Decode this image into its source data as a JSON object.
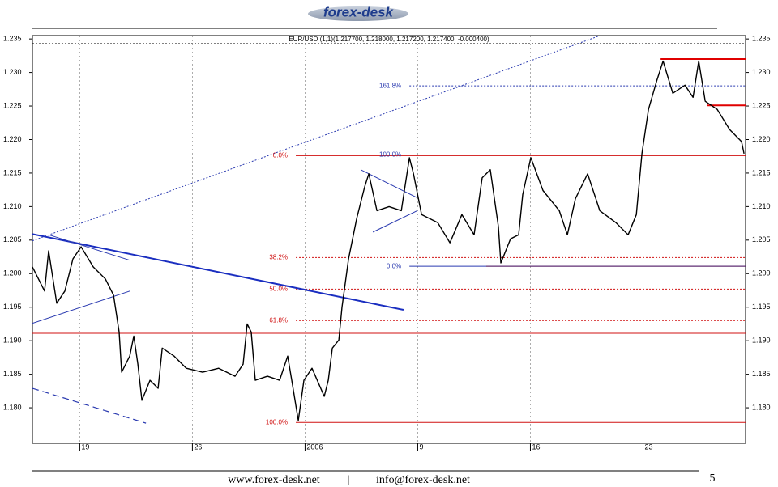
{
  "header": {
    "logo": "forex-desk"
  },
  "chart_data": {
    "type": "line",
    "title": "EUR/USD (1,1)(1.217700, 1.218000, 1.217200, 1.217400, -0.000400)",
    "x": [
      -0.1,
      0.44,
      0.62,
      0.98,
      1.34,
      1.7,
      2.06,
      2.6,
      3.14,
      3.5,
      3.75,
      3.86,
      4.22,
      4.4,
      4.58,
      4.76,
      5.12,
      5.48,
      5.66,
      6.19,
      6.73,
      7.45,
      8.17,
      8.89,
      9.25,
      9.43,
      9.61,
      9.79,
      10.33,
      10.87,
      11.23,
      11.41,
      11.7,
      11.95,
      12.31,
      12.85,
      13.03,
      13.21,
      13.5,
      13.64,
      13.93,
      14.29,
      14.65,
      14.83,
      15.19,
      15.73,
      16.27,
      16.63,
      16.81,
      17.17,
      17.89,
      18.43,
      18.96,
      19.5,
      19.86,
      20.22,
      20.58,
      20.69,
      21.12,
      21.48,
      21.66,
      22.02,
      22.56,
      23.28,
      23.64,
      24.0,
      24.54,
      25.08,
      25.8,
      26.34,
      26.7,
      26.95,
      27.24,
      27.6,
      27.89,
      28.32,
      28.86,
      29.22,
      29.47,
      29.76,
      30.29,
      30.84,
      31.37,
      31.48
    ],
    "values": [
      1.201,
      1.1974,
      1.2034,
      1.1956,
      1.1974,
      1.2022,
      1.204,
      1.201,
      1.1992,
      1.1968,
      1.1913,
      1.1853,
      1.1877,
      1.1907,
      1.1865,
      1.1811,
      1.1841,
      1.1829,
      1.1889,
      1.1877,
      1.1859,
      1.1853,
      1.1859,
      1.1847,
      1.1865,
      1.1925,
      1.1913,
      1.1841,
      1.1847,
      1.1841,
      1.1877,
      1.1841,
      1.1781,
      1.1841,
      1.1859,
      1.1817,
      1.1841,
      1.1889,
      1.1901,
      1.195,
      1.2022,
      1.2082,
      1.213,
      1.2149,
      1.2094,
      1.21,
      1.2094,
      1.2173,
      1.2149,
      1.2088,
      1.2076,
      1.2046,
      1.2088,
      1.2058,
      1.2143,
      1.2155,
      1.207,
      1.2016,
      1.2052,
      1.2058,
      1.2118,
      1.2173,
      1.2124,
      1.2094,
      1.2058,
      1.2112,
      1.2149,
      1.2094,
      1.2076,
      1.2058,
      1.2088,
      1.2179,
      1.2245,
      1.2287,
      1.2317,
      1.2269,
      1.2281,
      1.2263,
      1.2317,
      1.2257,
      1.2245,
      1.2215,
      1.2197,
      1.2179
    ],
    "color": "#000000",
    "xlim": [
      -0.1,
      31.55
    ],
    "ylim": [
      1.1747,
      1.2355
    ],
    "xticks": [
      {
        "value": 2,
        "label": "19"
      },
      {
        "value": 7,
        "label": "26"
      },
      {
        "value": 12,
        "label": "2006"
      },
      {
        "value": 17,
        "label": "9"
      },
      {
        "value": 22,
        "label": "16"
      },
      {
        "value": 27,
        "label": "23"
      }
    ],
    "yticks": [
      {
        "value": 1.18,
        "label": "1.180"
      },
      1.185,
      {
        "value": 1.19,
        "label": "1.190"
      },
      1.195,
      {
        "value": 1.2,
        "label": "1.200"
      },
      1.205,
      {
        "value": 1.21,
        "label": "1.210"
      },
      1.215,
      {
        "value": 1.22,
        "label": "1.220"
      },
      1.225,
      {
        "value": 1.23,
        "label": "1.230"
      },
      1.235
    ],
    "grid": "x",
    "levels": [
      {
        "value": 1.2343,
        "x": [
          -0.1,
          31.55
        ],
        "color": "#000000",
        "style": "dotted"
      },
      {
        "value": 1.1911,
        "x": [
          -0.1,
          31.55
        ],
        "color": "#d01010",
        "style": "solid"
      },
      {
        "value": 1.232,
        "x": [
          27.78,
          31.55
        ],
        "color": "#e00000",
        "style": "thick"
      },
      {
        "value": 1.2251,
        "x": [
          29.86,
          31.55
        ],
        "color": "#e00000",
        "style": "thick"
      },
      {
        "label": "0.0%",
        "value": 1.2176,
        "x": [
          11.59,
          31.55
        ],
        "color": "#d01010",
        "style": "solid"
      },
      {
        "label": "38.2%",
        "value": 1.2024,
        "x": [
          11.59,
          31.55
        ],
        "color": "#d01010",
        "style": "dotted"
      },
      {
        "label": "50.0%",
        "value": 1.1977,
        "x": [
          11.59,
          31.55
        ],
        "color": "#d01010",
        "style": "dotted"
      },
      {
        "label": "61.8%",
        "value": 1.193,
        "x": [
          11.59,
          31.55
        ],
        "color": "#d01010",
        "style": "dotted"
      },
      {
        "label": "100.0%",
        "value": 1.1778,
        "x": [
          11.59,
          31.55
        ],
        "color": "#d01010",
        "style": "solid"
      },
      {
        "label": "161.8%",
        "value": 1.228,
        "x": [
          16.63,
          31.55
        ],
        "color": "#2a3ab0",
        "style": "dotted"
      },
      {
        "label": "100.0%",
        "value": 1.2177,
        "x": [
          16.63,
          31.55
        ],
        "color": "#2a3ab0",
        "style": "solid"
      },
      {
        "label": "0.0%",
        "value": 1.2011,
        "x": [
          16.63,
          31.55
        ],
        "color": "#2a3ab0",
        "style": "solid"
      },
      {
        "value": 1.2011,
        "x": [
          20.04,
          31.55
        ],
        "color": "#602060",
        "style": "solid"
      }
    ],
    "segments": [
      {
        "x": [
          -0.1,
          16.37
        ],
        "y": [
          1.2059,
          1.1946
        ],
        "color": "#1a2ec0",
        "style": "thick"
      },
      {
        "x": [
          -0.1,
          25.26
        ],
        "y": [
          1.2049,
          1.2357
        ],
        "color": "#2a3ab0",
        "style": "dotted"
      },
      {
        "x": [
          -0.1,
          4.94
        ],
        "y": [
          1.1829,
          1.1777
        ],
        "color": "#2a3ab0",
        "style": "dashed"
      },
      {
        "x": [
          -0.1,
          4.22
        ],
        "y": [
          1.1926,
          1.1974
        ],
        "color": "#2a3ab0",
        "style": "solid"
      },
      {
        "x": [
          0.62,
          4.22
        ],
        "y": [
          1.2058,
          1.202
        ],
        "color": "#2a3ab0",
        "style": "solid"
      },
      {
        "x": [
          14.47,
          16.99
        ],
        "y": [
          1.2155,
          1.2113
        ],
        "color": "#2a3ab0",
        "style": "solid"
      },
      {
        "x": [
          15.01,
          16.99
        ],
        "y": [
          1.2062,
          1.2094
        ],
        "color": "#2a3ab0",
        "style": "solid"
      }
    ]
  },
  "footer": {
    "website": "www.forex-desk.net",
    "separator": "|",
    "email": "info@forex-desk.net",
    "page": "5"
  }
}
